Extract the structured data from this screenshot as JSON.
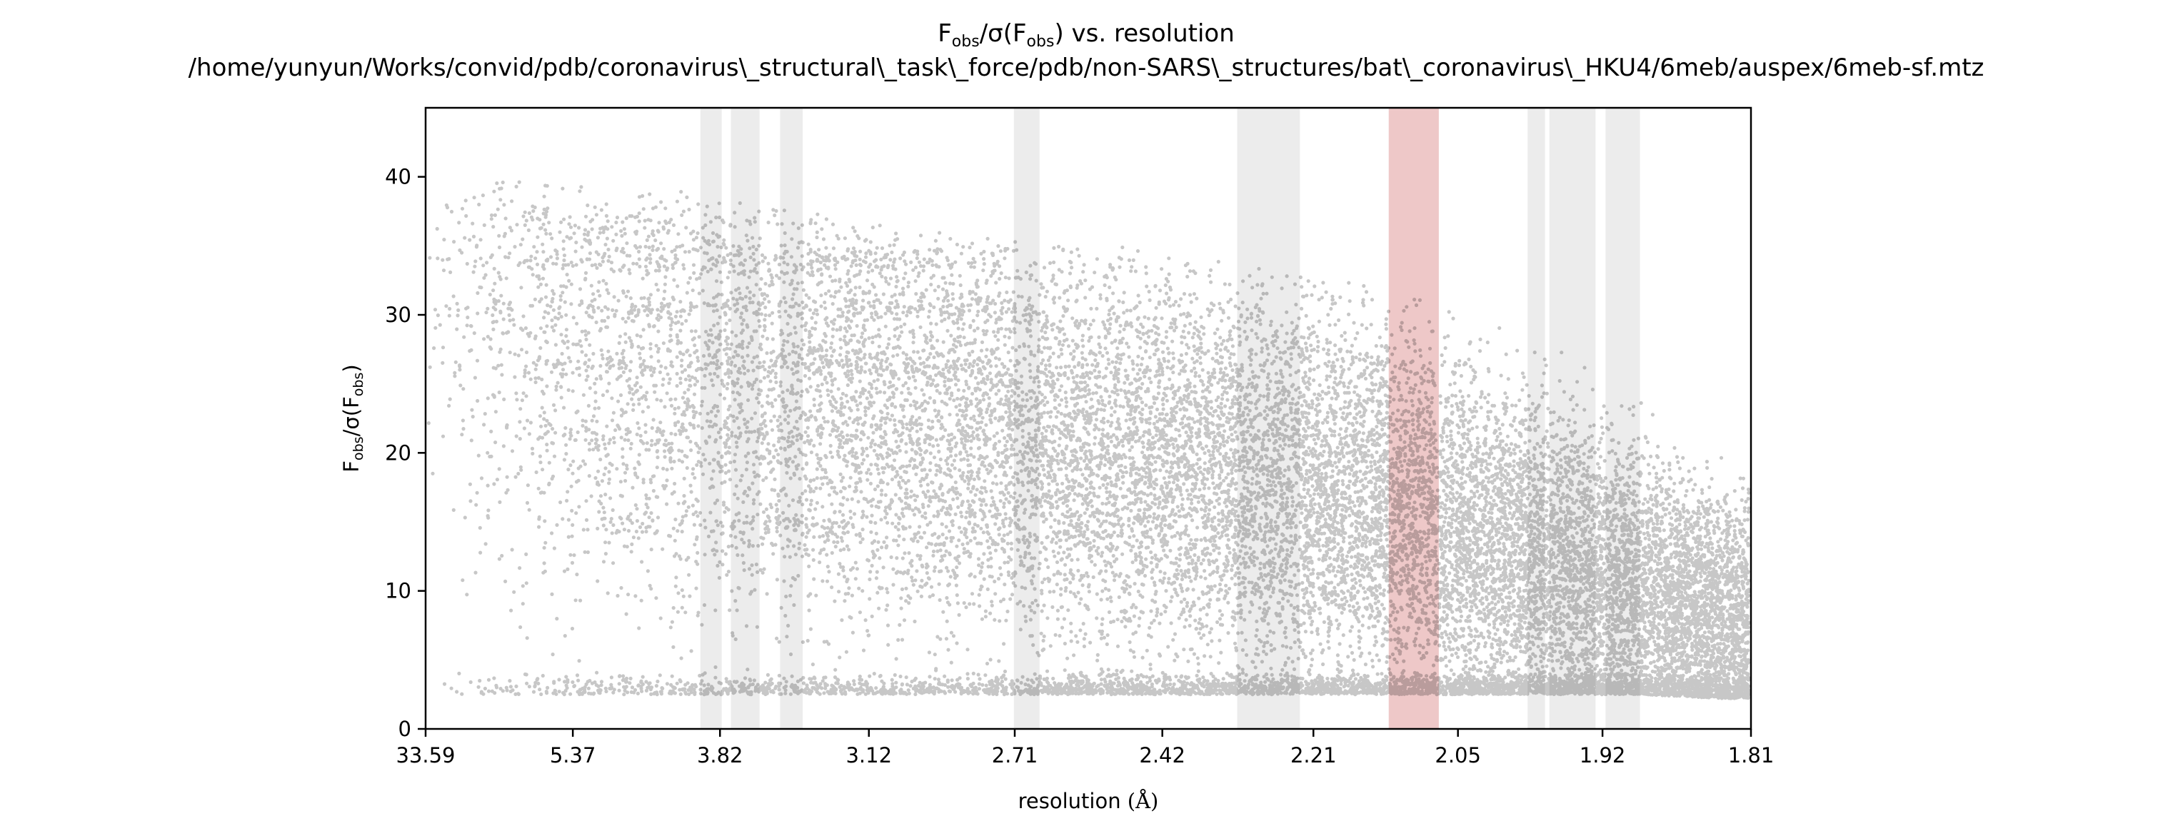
{
  "figure": {
    "title_main": "vs. resolution",
    "title_path": "/home/yunyun/Works/convid/pdb/coronavirus\\_structural\\_task\\_force/pdb/non-SARS\\_structures/bat\\_coronavirus\\_HKU4/6meb/auspex/6meb-sf.mtz",
    "title_math": {
      "num_base": "F",
      "num_sub": "obs",
      "sigma": "σ",
      "inner_base": "F",
      "inner_sub": "obs"
    }
  },
  "chart_data": {
    "type": "scatter",
    "title": "Fobs/σ(Fobs) vs. resolution",
    "subtitle": "/home/yunyun/Works/convid/pdb/coronavirus\\_structural\\_task\\_force/pdb/non-SARS\\_structures/bat\\_coronavirus\\_HKU4/6meb/auspex/6meb-sf.mtz",
    "xlabel": "resolution",
    "xlabel_unit": "(Å)",
    "ylabel": {
      "base": "F",
      "sub": "obs",
      "sigma": "σ",
      "inner_base": "F",
      "inner_sub": "obs"
    },
    "x_scale": "1/d² (reciprocal resolution squared)",
    "xlim": [
      0.000886,
      0.3053
    ],
    "ylim": [
      0,
      45
    ],
    "x_ticks": [
      {
        "value": 0.000886,
        "label": "33.59"
      },
      {
        "value": 0.0347,
        "label": "5.37"
      },
      {
        "value": 0.0685,
        "label": "3.82"
      },
      {
        "value": 0.1027,
        "label": "3.12"
      },
      {
        "value": 0.1362,
        "label": "2.71"
      },
      {
        "value": 0.1701,
        "label": "2.42"
      },
      {
        "value": 0.2048,
        "label": "2.21"
      },
      {
        "value": 0.238,
        "label": "2.05"
      },
      {
        "value": 0.2712,
        "label": "1.92"
      },
      {
        "value": 0.3053,
        "label": "1.81"
      }
    ],
    "y_ticks": [
      0,
      10,
      20,
      30,
      40
    ],
    "grid": false,
    "legend": "none",
    "ice_ring_bands": [
      {
        "x_range": [
          0.064,
          0.0689
        ],
        "color": "#ececec"
      },
      {
        "x_range": [
          0.071,
          0.0776
        ],
        "color": "#ececec"
      },
      {
        "x_range": [
          0.0823,
          0.0875
        ],
        "color": "#ececec"
      },
      {
        "x_range": [
          0.136,
          0.1419
        ],
        "color": "#ececec"
      },
      {
        "x_range": [
          0.1873,
          0.2017
        ],
        "color": "#ececec"
      },
      {
        "x_range": [
          0.254,
          0.258
        ],
        "color": "#ececec"
      },
      {
        "x_range": [
          0.259,
          0.2696
        ],
        "color": "#ececec"
      },
      {
        "x_range": [
          0.2719,
          0.2798
        ],
        "color": "#ececec"
      }
    ],
    "highlight_band": {
      "x_range": [
        0.2221,
        0.2336
      ],
      "color": "#e8b5b5"
    },
    "point_color": "#000000",
    "point_opacity": 0.22,
    "approx_point_count": 22000,
    "series_envelope": {
      "x": [
        0.002,
        0.02,
        0.04,
        0.06,
        0.08,
        0.1,
        0.12,
        0.14,
        0.16,
        0.18,
        0.2,
        0.22,
        0.24,
        0.26,
        0.28,
        0.3
      ],
      "upper": [
        38,
        38,
        37.5,
        37,
        36,
        35,
        34,
        33.5,
        33,
        32,
        31,
        30,
        28,
        26,
        22,
        20
      ],
      "mean": [
        28,
        27,
        26,
        25,
        24,
        22.5,
        21.5,
        20.5,
        19.5,
        18.5,
        17.5,
        16,
        14,
        12,
        10,
        8
      ],
      "lower": [
        2.5,
        2.5,
        2.5,
        2.5,
        2.5,
        2.5,
        2.5,
        2.5,
        2.5,
        2.5,
        2.5,
        2.5,
        2.5,
        2.5,
        2.5,
        2.2
      ]
    },
    "dense_streaks": [
      {
        "y": 37.0,
        "x_range": [
          0.002,
          0.03
        ]
      },
      {
        "y": 34.0,
        "x_range": [
          0.002,
          0.12
        ]
      },
      {
        "y": 30.5,
        "x_range": [
          0.002,
          0.14
        ]
      },
      {
        "y": 26.3,
        "x_range": [
          0.002,
          0.13
        ]
      },
      {
        "y": 21.3,
        "x_range": [
          0.002,
          0.08
        ]
      },
      {
        "y": 14.8,
        "x_range": [
          0.04,
          0.1
        ]
      },
      {
        "y": 2.6,
        "x_range": [
          0.13,
          0.3
        ]
      }
    ]
  }
}
